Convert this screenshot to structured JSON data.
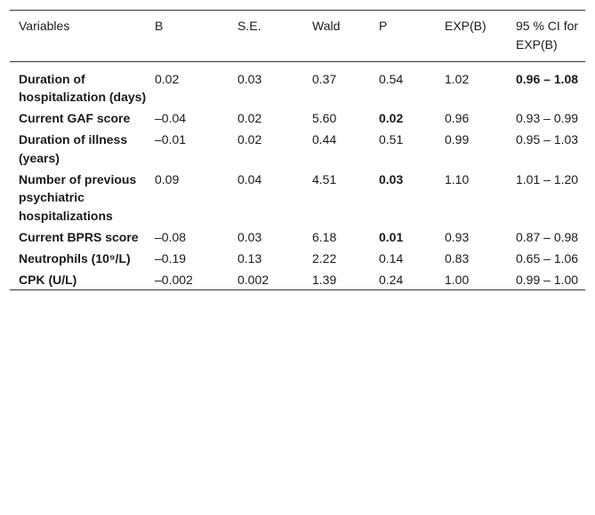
{
  "table": {
    "headers": [
      "Variables",
      "B",
      "S.E.",
      "Wald",
      "P",
      "EXP(B)",
      "95 % CI for EXP(B)"
    ],
    "rows": [
      {
        "variable": "Duration of hospitalization (days)",
        "b": "0.02",
        "se": "0.03",
        "wald": "0.37",
        "p": "0.54",
        "expb": "1.02",
        "ci": "0.96 – 1.08"
      },
      {
        "variable": "Current GAF score",
        "b": "–0.04",
        "se": "0.02",
        "wald": "5.60",
        "p": "0.02",
        "expb": "0.96",
        "ci": "0.93 – 0.99"
      },
      {
        "variable": "Duration of illness (years)",
        "b": "–0.01",
        "se": "0.02",
        "wald": "0.44",
        "p": "0.51",
        "expb": "0.99",
        "ci": "0.95 – 1.03"
      },
      {
        "variable": "Number of previous psychiatric hospitalizations",
        "b": "0.09",
        "se": "0.04",
        "wald": "4.51",
        "p": "0.03",
        "expb": "1.10",
        "ci": "1.01 – 1.20"
      },
      {
        "variable": "Current BPRS score",
        "b": "–0.08",
        "se": "0.03",
        "wald": "6.18",
        "p": "0.01",
        "expb": "0.93",
        "ci": "0.87 – 0.98"
      },
      {
        "variable": "Neutrophils (10⁹/L)",
        "b": "–0.19",
        "se": "0.13",
        "wald": "2.22",
        "p": "0.14",
        "expb": "0.83",
        "ci": "0.65 – 1.06"
      },
      {
        "variable": "CPK (U/L)",
        "b": "–0.002",
        "se": "0.002",
        "wald": "1.39",
        "p": "0.24",
        "expb": "1.00",
        "ci": "0.99 – 1.00"
      }
    ]
  }
}
